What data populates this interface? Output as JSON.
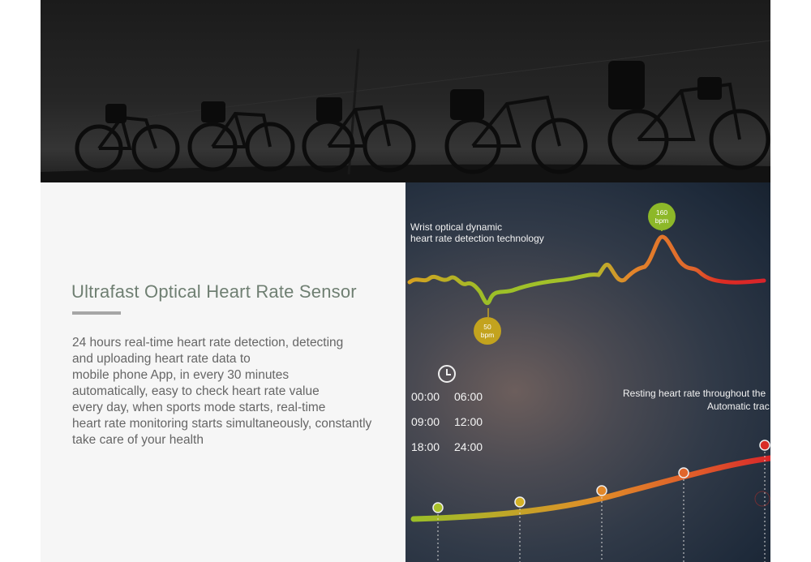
{
  "banner": {
    "image": "bicycles-silhouette-photo"
  },
  "feature": {
    "title": "Ultrafast Optical Heart Rate Sensor",
    "description_lines": [
      "24 hours real-time heart rate detection, detecting",
      "and uploading heart rate data to",
      "mobile phone App, in every 30 minutes",
      "automatically, easy to check heart rate value",
      "every day, when sports mode starts, real-time",
      "heart rate monitoring starts simultaneously, constantly",
      "take care of your health"
    ]
  },
  "graphic": {
    "wrist_label_line1": "Wrist optical dynamic",
    "wrist_label_line2": "heart rate detection technology",
    "peak_badge_value": "160",
    "peak_badge_unit": "bpm",
    "low_badge_value": "50",
    "low_badge_unit": "bpm",
    "clock_icon": "clock-icon",
    "times": [
      "00:00",
      "06:00",
      "09:00",
      "12:00",
      "18:00",
      "24:00"
    ],
    "resting_line1": "Resting heart rate throughout the",
    "resting_line2": "Automatic trac",
    "colors": {
      "green": "#8db829",
      "orange": "#e0902a",
      "red": "#dd2b22"
    }
  }
}
